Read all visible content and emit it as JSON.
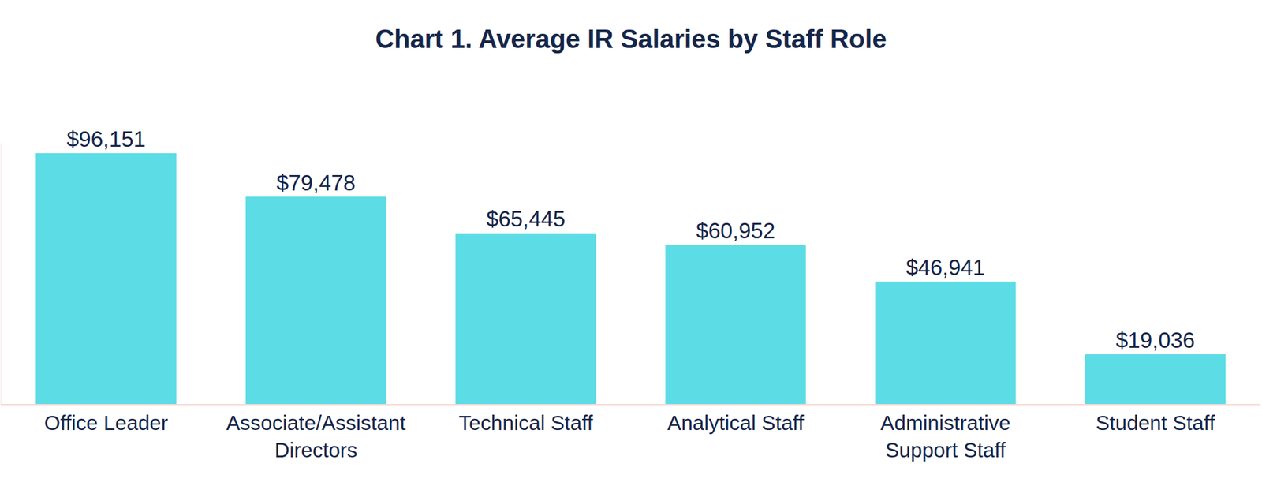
{
  "chart_data": {
    "type": "bar",
    "title": "Chart 1. Average IR Salaries by Staff Role",
    "categories": [
      "Office Leader",
      "Associate/Assistant Directors",
      "Technical Staff",
      "Analytical Staff",
      "Administrative Support Staff",
      "Student Staff"
    ],
    "values": [
      96151,
      79478,
      65445,
      60952,
      46941,
      19036
    ],
    "value_labels": [
      "$96,151",
      "$79,478",
      "$65,445",
      "$60,952",
      "$46,941",
      "$19,036"
    ],
    "color": "#5cdce4",
    "ylim": [
      0,
      100000
    ],
    "grid": false,
    "data_labels": true,
    "tick_labels": "x"
  }
}
